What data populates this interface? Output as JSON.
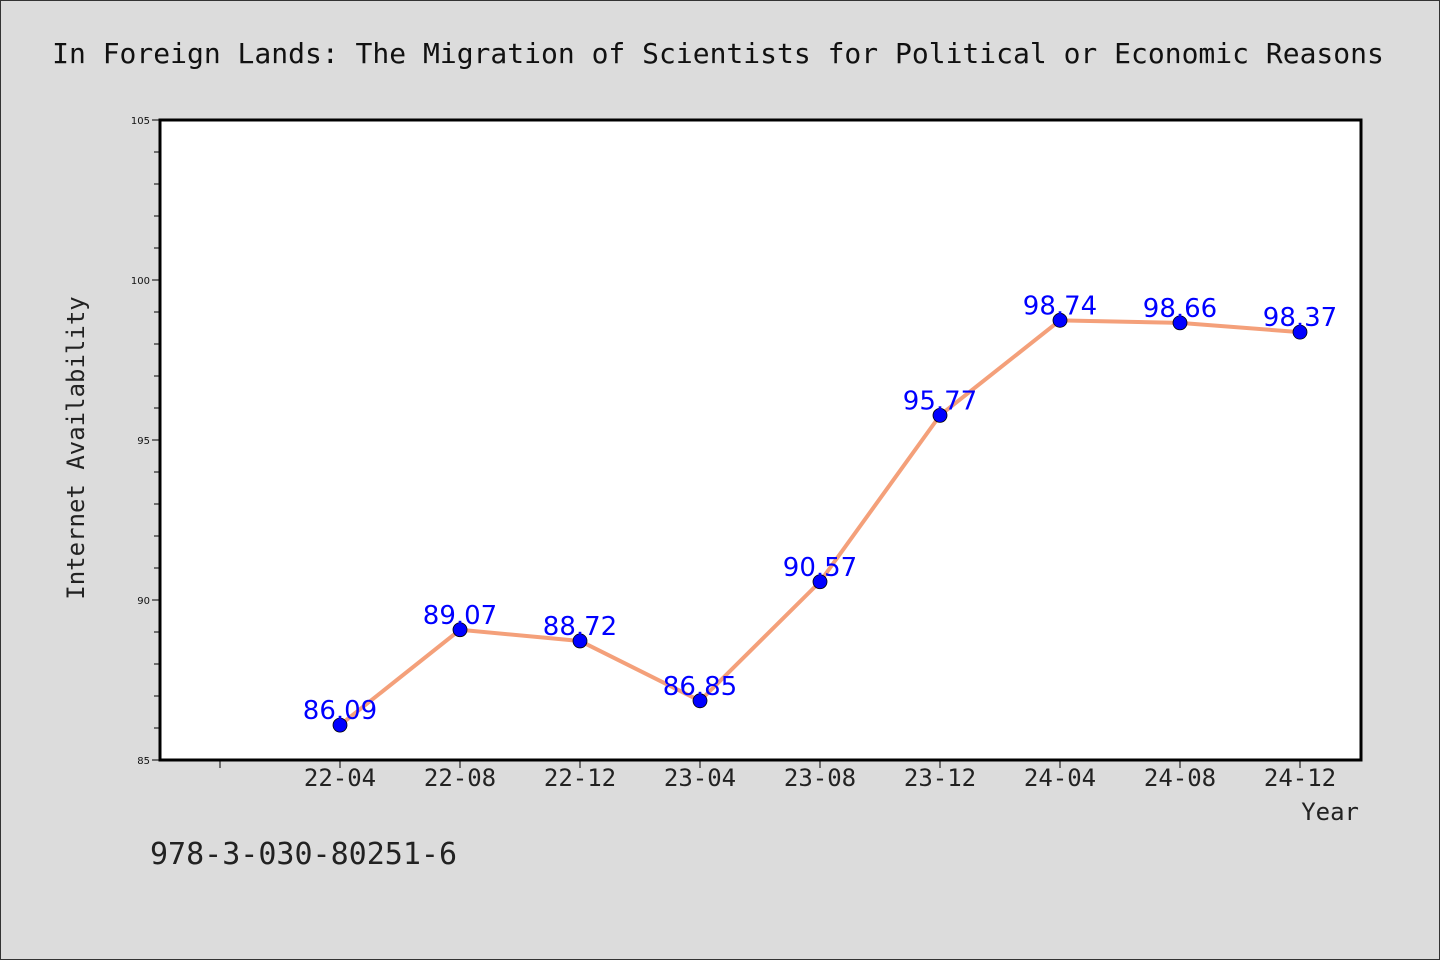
{
  "chart_data": {
    "type": "line",
    "title": "In Foreign Lands: The Migration of Scientists for Political or Economic Reasons",
    "xlabel": "Year",
    "ylabel": "Internet Availability",
    "categories": [
      "22-04",
      "22-08",
      "22-12",
      "23-04",
      "23-08",
      "23-12",
      "24-04",
      "24-08",
      "24-12"
    ],
    "series": [
      {
        "values": [
          86.09,
          89.07,
          88.72,
          86.85,
          90.57,
          95.77,
          98.74,
          98.66,
          98.37
        ],
        "labels": [
          "86.09",
          "89.07",
          "88.72",
          "86.85",
          "90.57",
          "95.77",
          "98.74",
          "98.66",
          "98.37"
        ]
      }
    ],
    "ylim": [
      85,
      105
    ],
    "yticks": [
      "85",
      "90",
      "95",
      "100",
      "105"
    ],
    "grid": false,
    "legend": "none"
  },
  "footer": {
    "isbn": "978-3-030-80251-6"
  },
  "colors": {
    "line": "#f4a07a",
    "marker": "#0000ff",
    "data_label": "#0000ff",
    "background": "#dcdcdc",
    "plot_background": "#ffffff"
  }
}
